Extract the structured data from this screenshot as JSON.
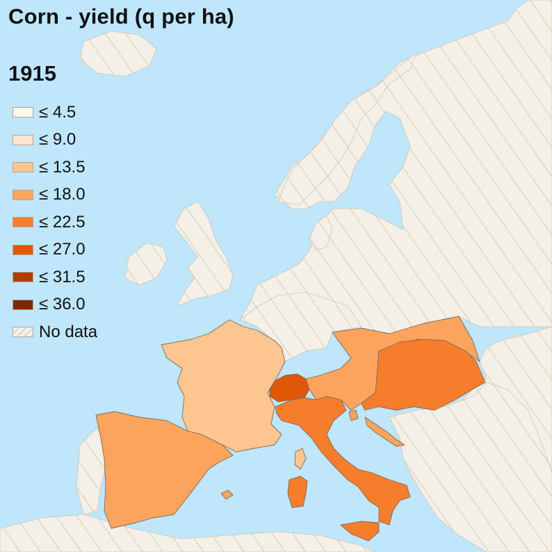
{
  "title": "Corn - yield (q per ha)",
  "year": "1915",
  "legend": [
    {
      "label": "≤ 4.5",
      "color": "#fff5eb"
    },
    {
      "label": "≤ 9.0",
      "color": "#fee6ce"
    },
    {
      "label": "≤ 13.5",
      "color": "#fdc590"
    },
    {
      "label": "≤ 18.0",
      "color": "#fca45d"
    },
    {
      "label": "≤ 22.5",
      "color": "#f67d2c"
    },
    {
      "label": "≤ 27.0",
      "color": "#e05708"
    },
    {
      "label": "≤ 31.5",
      "color": "#b33c04"
    },
    {
      "label": "≤ 36.0",
      "color": "#7e2803"
    },
    {
      "label": "No data",
      "color": "#f4f0e8"
    }
  ],
  "colors": {
    "sea": "#bfe6fa",
    "no_data_land": "#f4f0e8",
    "no_data_hatch": "#d2c2a6",
    "border": "#7a6a5a"
  },
  "regions": [
    {
      "name": "France",
      "value_class": "≤ 13.5",
      "color": "#fdc590"
    },
    {
      "name": "Spain",
      "value_class": "≤ 18.0",
      "color": "#fca45d"
    },
    {
      "name": "Austria",
      "value_class": "≤ 18.0",
      "color": "#fca45d"
    },
    {
      "name": "Dalmatia coast",
      "value_class": "≤ 18.0",
      "color": "#fca45d"
    },
    {
      "name": "Hungary",
      "value_class": "≤ 22.5",
      "color": "#f67d2c"
    },
    {
      "name": "Italy",
      "value_class": "≤ 22.5",
      "color": "#f67d2c"
    },
    {
      "name": "Switzerland",
      "value_class": "≤ 27.0",
      "color": "#e05708"
    }
  ]
}
